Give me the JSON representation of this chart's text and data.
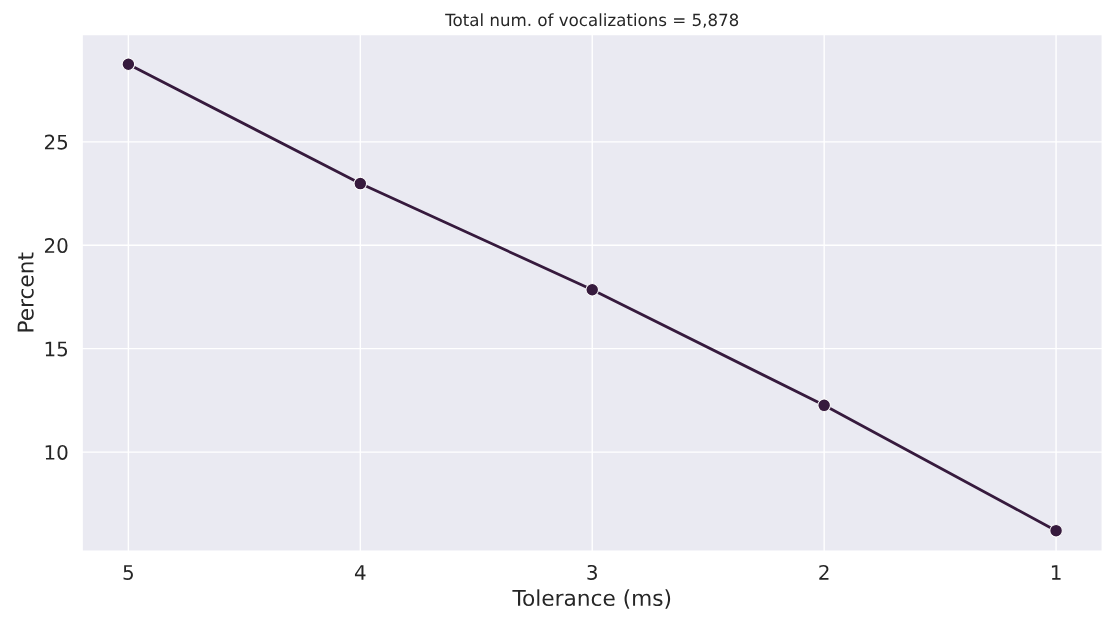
{
  "chart_data": {
    "type": "line",
    "subtitle": "Total num. of vocalizations = 5,878",
    "xlabel": "Tolerance (ms)",
    "ylabel": "Percent",
    "categories": [
      "5",
      "4",
      "3",
      "2",
      "1"
    ],
    "series": [
      {
        "color": "#361a3d",
        "values": [
          28.75,
          22.98,
          17.85,
          12.26,
          6.2
        ]
      }
    ],
    "ylim": [
      5.2,
      30.2
    ],
    "yticks": [
      10,
      15,
      20,
      25
    ],
    "grid": true,
    "marker": "circle",
    "line_style": "solid"
  }
}
